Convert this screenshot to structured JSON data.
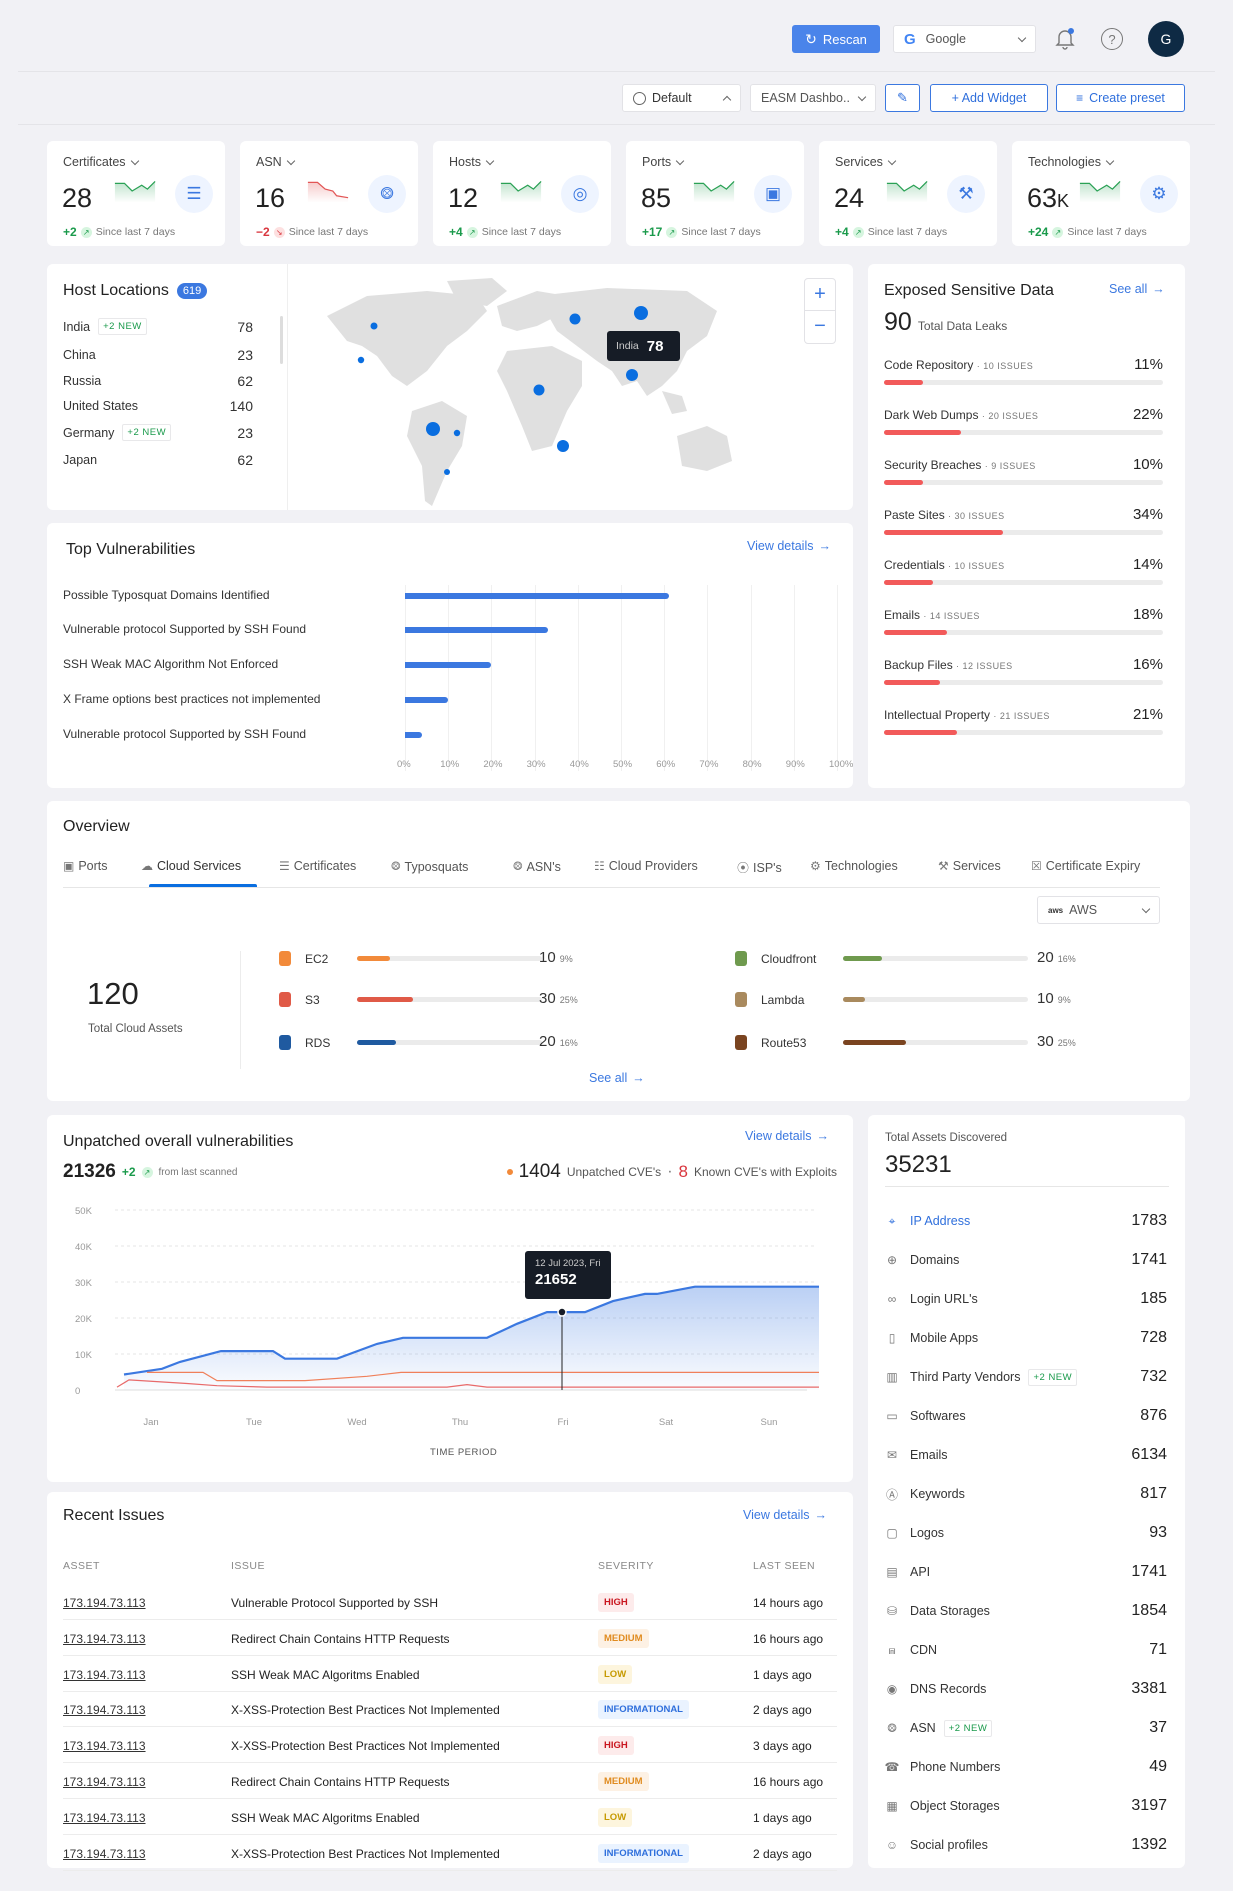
{
  "header": {
    "rescan_label": "Rescan",
    "org_select": "Google",
    "avatar_initial": "G",
    "notification_dot": true
  },
  "toolbar": {
    "preset_select": "Default",
    "dashboard_select": "EASM Dashbo..",
    "add_widget_label": "+ Add Widget",
    "create_preset_label": "Create preset"
  },
  "stats": [
    {
      "label": "Certificates",
      "value": "28",
      "delta": "+2",
      "trend": "up",
      "since": "Since last 7 days",
      "icon": "document-icon"
    },
    {
      "label": "ASN",
      "value": "16",
      "delta": "−2",
      "trend": "down",
      "since": "Since last 7 days",
      "icon": "network-nodes-icon"
    },
    {
      "label": "Hosts",
      "value": "12",
      "delta": "+4",
      "trend": "up",
      "since": "Since last 7 days",
      "icon": "globe-icon"
    },
    {
      "label": "Ports",
      "value": "85",
      "delta": "+17",
      "trend": "up",
      "since": "Since last 7 days",
      "icon": "ethernet-port-icon"
    },
    {
      "label": "Services",
      "value": "24",
      "delta": "+4",
      "trend": "up",
      "since": "Since last 7 days",
      "icon": "wrench-icon"
    },
    {
      "label": "Technologies",
      "value": "63",
      "value_suffix": "K",
      "delta": "+24",
      "trend": "up",
      "since": "Since last 7 days",
      "icon": "gear-icon"
    }
  ],
  "host_locations": {
    "title": "Host Locations",
    "count": "619",
    "items": [
      {
        "country": "India",
        "badge": "+2 NEW",
        "value": "78"
      },
      {
        "country": "China",
        "badge": "",
        "value": "23"
      },
      {
        "country": "Russia",
        "badge": "",
        "value": "62"
      },
      {
        "country": "United States",
        "badge": "",
        "value": "140"
      },
      {
        "country": "Germany",
        "badge": "+2 NEW",
        "value": "23"
      },
      {
        "country": "Japan",
        "badge": "",
        "value": "62"
      }
    ],
    "tooltip": {
      "country": "India",
      "value": "78"
    },
    "zoom_in": "+",
    "zoom_out": "−"
  },
  "exposed_data": {
    "title": "Exposed Sensitive Data",
    "see_all": "See all",
    "total": "90",
    "total_label": "Total Data Leaks",
    "items": [
      {
        "name": "Code Repository",
        "issues": "10 ISSUES",
        "pct": "11%",
        "value": 11
      },
      {
        "name": "Dark Web Dumps",
        "issues": "20 ISSUES",
        "pct": "22%",
        "value": 22
      },
      {
        "name": "Security Breaches",
        "issues": "9 ISSUES",
        "pct": "10%",
        "value": 10
      },
      {
        "name": "Paste Sites",
        "issues": "30 ISSUES",
        "pct": "34%",
        "value": 34
      },
      {
        "name": "Credentials",
        "issues": "10 ISSUES",
        "pct": "14%",
        "value": 14
      },
      {
        "name": "Emails",
        "issues": "14 ISSUES",
        "pct": "18%",
        "value": 18
      },
      {
        "name": "Backup Files",
        "issues": "12 ISSUES",
        "pct": "16%",
        "value": 16
      },
      {
        "name": "Intellectual Property",
        "issues": "21 ISSUES",
        "pct": "21%",
        "value": 21
      }
    ]
  },
  "top_vulnerabilities": {
    "title": "Top Vulnerabilities",
    "view_details": "View details",
    "items": [
      {
        "label": "Possible Typosquat Domains Identified",
        "value": 61
      },
      {
        "label": "Vulnerable protocol Supported by SSH Found",
        "value": 33
      },
      {
        "label": "SSH Weak MAC Algorithm Not Enforced",
        "value": 20
      },
      {
        "label": "X Frame  options best practices not implemented",
        "value": 10
      },
      {
        "label": "Vulnerable protocol Supported by SSH Found",
        "value": 4
      }
    ],
    "axis": [
      "0%",
      "10%",
      "20%",
      "30%",
      "40%",
      "50%",
      "60%",
      "70%",
      "80%",
      "90%",
      "100%"
    ]
  },
  "overview": {
    "title": "Overview",
    "tabs": [
      {
        "label": "Ports",
        "icon": "ethernet-port-icon"
      },
      {
        "label": "Cloud Services",
        "icon": "cloud-icon",
        "active": true
      },
      {
        "label": "Certificates",
        "icon": "document-icon"
      },
      {
        "label": "Typosquats",
        "icon": "network-nodes-icon"
      },
      {
        "label": "ASN's",
        "icon": "network-nodes-icon"
      },
      {
        "label": "Cloud Providers",
        "icon": "server-icon"
      },
      {
        "label": "ISP's",
        "icon": "antenna-icon"
      },
      {
        "label": "Technologies",
        "icon": "gear-icon"
      },
      {
        "label": "Services",
        "icon": "wrench-icon"
      },
      {
        "label": "Certificate Expiry",
        "icon": "certificate-expiry-icon"
      }
    ],
    "provider_select": "AWS",
    "total": "120",
    "total_label": "Total Cloud Assets",
    "services_left": [
      {
        "name": "EC2",
        "value": "10",
        "pct": "9%",
        "fill": 18,
        "color": "#f28a3a"
      },
      {
        "name": "S3",
        "value": "30",
        "pct": "25%",
        "fill": 30,
        "color": "#e05a47"
      },
      {
        "name": "RDS",
        "value": "20",
        "pct": "16%",
        "fill": 21,
        "color": "#1f5aa0"
      }
    ],
    "services_right": [
      {
        "name": "Cloudfront",
        "value": "20",
        "pct": "16%",
        "fill": 21,
        "color": "#6f9a4e"
      },
      {
        "name": "Lambda",
        "value": "10",
        "pct": "9%",
        "fill": 12,
        "color": "#a98a5e"
      },
      {
        "name": "Route53",
        "value": "30",
        "pct": "25%",
        "fill": 34,
        "color": "#7a4420"
      }
    ],
    "see_all": "See all"
  },
  "unpatched": {
    "title": "Unpatched overall vulnerabilities",
    "view_details": "View details",
    "total": "21326",
    "delta": "+2",
    "delta_label": "from last scanned",
    "unpatched_count": "1404",
    "unpatched_label": "Unpatched CVE's",
    "known_count": "8",
    "known_label": "Known CVE's with Exploits",
    "tooltip_date": "12 Jul 2023, Fri",
    "tooltip_value": "21652",
    "xlabel": "TIME PERIOD"
  },
  "chart_data": {
    "type": "area",
    "title": "Unpatched overall vulnerabilities",
    "xlabel": "TIME PERIOD",
    "ylabel": "",
    "x": [
      "Jan",
      "Tue",
      "Wed",
      "Thu",
      "Fri",
      "Sat",
      "Sun"
    ],
    "yticks": [
      "0",
      "10K",
      "20K",
      "30K",
      "40K",
      "50K"
    ],
    "ylim": [
      0,
      50000
    ],
    "grid": true,
    "series": [
      {
        "name": "Unpatched overall",
        "color": "#3b78e0",
        "values": [
          6000,
          10500,
          8500,
          14500,
          21652,
          28500,
          28500
        ]
      },
      {
        "name": "Unpatched CVE's",
        "color": "#f28a5a",
        "values": [
          5000,
          2500,
          3500,
          5000,
          5000,
          5000,
          5000
        ]
      },
      {
        "name": "Known CVE's with Exploits",
        "color": "#e86a6a",
        "values": [
          2500,
          800,
          800,
          1500,
          800,
          800,
          800
        ]
      }
    ],
    "annotation": {
      "x": "Fri",
      "label": "12 Jul 2023, Fri",
      "value": 21652
    }
  },
  "total_assets": {
    "label": "Total Assets Discovered",
    "total": "35231",
    "items": [
      {
        "name": "IP Address",
        "value": "1783",
        "icon": "location-pin-icon",
        "active": true
      },
      {
        "name": "Domains",
        "value": "1741",
        "icon": "globe-icon"
      },
      {
        "name": "Login URL's",
        "value": "185",
        "icon": "link-icon"
      },
      {
        "name": "Mobile Apps",
        "value": "728",
        "icon": "mobile-icon"
      },
      {
        "name": "Third Party Vendors",
        "value": "732",
        "icon": "building-icon",
        "badge": "+2 NEW"
      },
      {
        "name": "Softwares",
        "value": "876",
        "icon": "software-window-icon"
      },
      {
        "name": "Emails",
        "value": "6134",
        "icon": "mail-icon"
      },
      {
        "name": "Keywords",
        "value": "817",
        "icon": "keyword-icon"
      },
      {
        "name": "Logos",
        "value": "93",
        "icon": "logo-frame-icon"
      },
      {
        "name": "API",
        "value": "1741",
        "icon": "api-file-icon"
      },
      {
        "name": "Data Storages",
        "value": "1854",
        "icon": "database-icon"
      },
      {
        "name": "CDN",
        "value": "71",
        "icon": "hierarchy-icon"
      },
      {
        "name": "DNS Records",
        "value": "3381",
        "icon": "dns-icon"
      },
      {
        "name": "ASN",
        "value": "37",
        "icon": "network-nodes-icon",
        "badge": "+2 NEW"
      },
      {
        "name": "Phone Numbers",
        "value": "49",
        "icon": "phone-icon"
      },
      {
        "name": "Object Storages",
        "value": "3197",
        "icon": "archive-icon"
      },
      {
        "name": "Social profiles",
        "value": "1392",
        "icon": "users-icon"
      }
    ]
  },
  "recent_issues": {
    "title": "Recent Issues",
    "view_details": "View details",
    "columns": [
      "ASSET",
      "ISSUE",
      "SEVERITY",
      "LAST SEEN"
    ],
    "rows": [
      {
        "asset": "173.194.73.113",
        "issue": "Vulnerable Protocol Supported by SSH",
        "severity": "HIGH",
        "last_seen": "14 hours ago"
      },
      {
        "asset": "173.194.73.113",
        "issue": "Redirect Chain Contains HTTP Requests",
        "severity": "MEDIUM",
        "last_seen": "16 hours ago"
      },
      {
        "asset": "173.194.73.113",
        "issue": "SSH Weak MAC Algoritms Enabled",
        "severity": "LOW",
        "last_seen": "1 days ago"
      },
      {
        "asset": "173.194.73.113",
        "issue": "X-XSS-Protection Best Practices Not Implemented",
        "severity": "INFORMATIONAL",
        "last_seen": "2 days ago"
      },
      {
        "asset": "173.194.73.113",
        "issue": "X-XSS-Protection Best Practices Not Implemented",
        "severity": "HIGH",
        "last_seen": "3 days ago"
      },
      {
        "asset": "173.194.73.113",
        "issue": "Redirect Chain Contains HTTP Requests",
        "severity": "MEDIUM",
        "last_seen": "16 hours ago"
      },
      {
        "asset": "173.194.73.113",
        "issue": "SSH Weak MAC Algoritms Enabled",
        "severity": "LOW",
        "last_seen": "1 days ago"
      },
      {
        "asset": "173.194.73.113",
        "issue": "X-XSS-Protection Best Practices Not Implemented",
        "severity": "INFORMATIONAL",
        "last_seen": "2 days ago"
      }
    ]
  }
}
